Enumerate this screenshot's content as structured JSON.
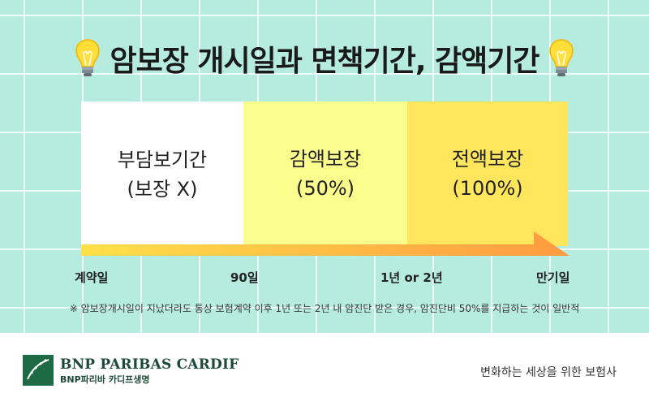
{
  "title": "암보장 개시일과 면책기간, 감액기간",
  "icons": {
    "decoration": "lightbulb-icon",
    "logo": "bnp-stars-logo"
  },
  "colors": {
    "background": "#b6ece0",
    "phase_no_coverage": "#ffffff",
    "phase_reduced": "#fbfd8c",
    "phase_full": "#ffe65c",
    "arrow_start": "#ffe04a",
    "arrow_end": "#ff9a40",
    "brand": "#1d4a35"
  },
  "phases": [
    {
      "title": "부담보기간",
      "sub": "(보장 X)"
    },
    {
      "title": "감액보장",
      "sub": "(50%)"
    },
    {
      "title": "전액보장",
      "sub": "(100%)"
    }
  ],
  "timeline_labels": [
    "계약일",
    "90일",
    "1년 or 2년",
    "만기일"
  ],
  "footnote": "※ 암보장개시일이 지났더라도 통상 보험계약 이후 1년 또는 2년 내 암진단 받은 경우, 암진단비 50%를 지급하는 것이 일반적",
  "footer": {
    "brand_name": "BNP PARIBAS CARDIF",
    "brand_sub": "BNP파리바 카디프생명",
    "slogan": "변화하는 세상을 위한 보험사"
  }
}
